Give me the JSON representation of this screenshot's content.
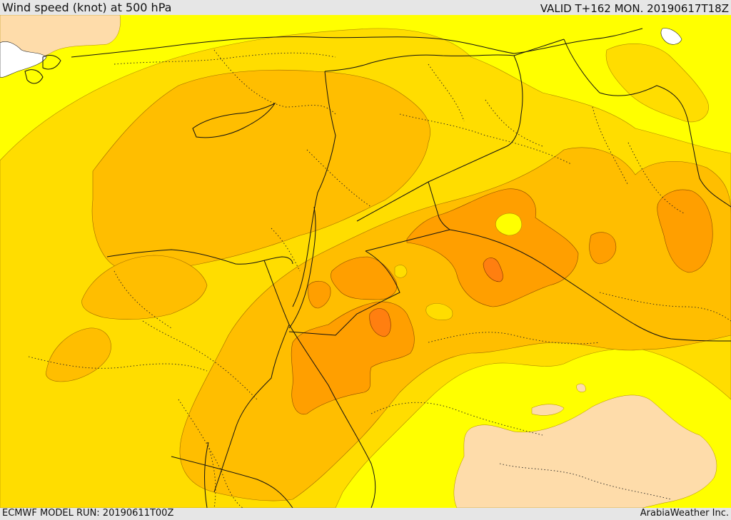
{
  "header": {
    "title": "Wind speed (knot) at 500 hPa",
    "valid_time": "VALID T+162 MON. 20190617T18Z"
  },
  "footer": {
    "model_run": "ECMWF MODEL RUN: 20190611T00Z",
    "credit": "ArabiaWeather Inc."
  },
  "map": {
    "field": "wind speed at 500 hPa",
    "fill_colors": {
      "lowest": "#ffff00",
      "low": "#ffdd00",
      "medium": "#ffbe00",
      "high": "#ff9f00",
      "highest": "#ff7f10",
      "calm": "#fedcaa"
    }
  }
}
